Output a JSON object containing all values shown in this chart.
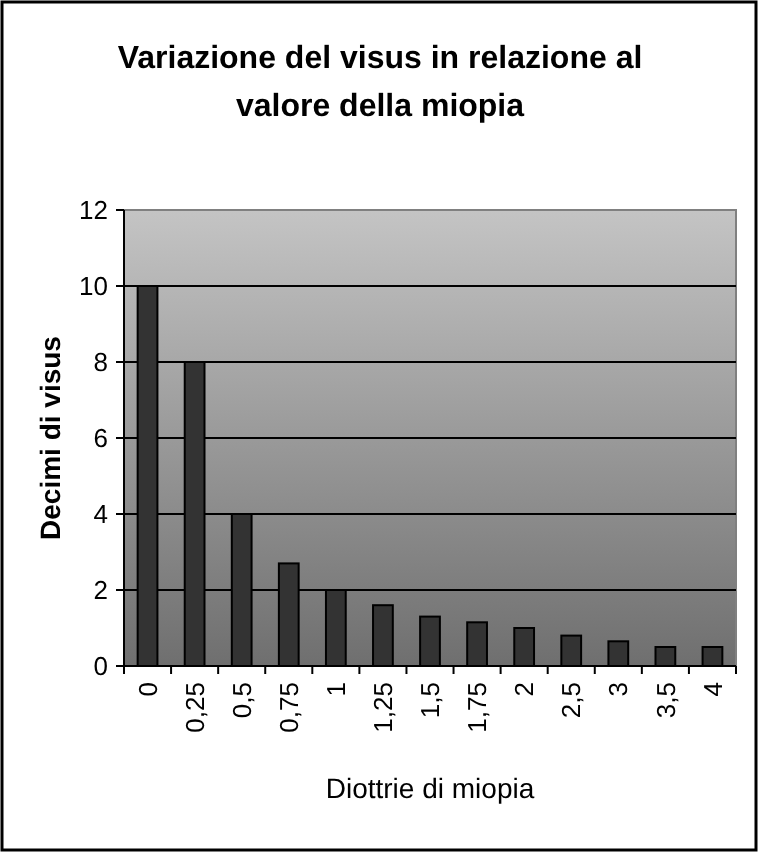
{
  "chart_data": {
    "type": "bar",
    "title": "Variazione del visus in relazione al valore della miopia",
    "xlabel": "Diottrie di miopia",
    "ylabel": "Decimi di visus",
    "categories": [
      "0",
      "0,25",
      "0,5",
      "0,75",
      "1",
      "1,25",
      "1,5",
      "1,75",
      "2",
      "2,5",
      "3",
      "3,5",
      "4"
    ],
    "values": [
      10,
      8,
      4,
      2.7,
      2,
      1.6,
      1.3,
      1.15,
      1,
      0.8,
      0.65,
      0.5,
      0.5
    ],
    "color": "#333333",
    "ylim": [
      0,
      12
    ],
    "yticks": [
      0,
      2,
      4,
      6,
      8,
      10,
      12
    ],
    "grid": "y"
  }
}
